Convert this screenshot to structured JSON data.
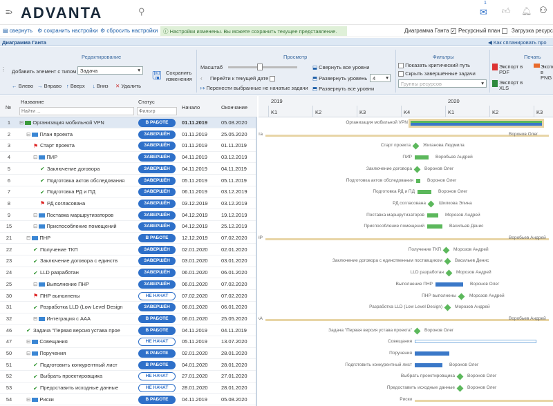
{
  "app": {
    "logo": "ADVANTA",
    "notif_count": "1"
  },
  "toolbar": {
    "collapse": "свернуть",
    "save_settings": "сохранить настройки",
    "reset_settings": "сбросить настройки",
    "notice": "Настройки изменены. Вы можете сохранить текущее представление.",
    "gantt_chk": "Диаграмма Ганта",
    "resource_chk": "Ресурсный план",
    "load_chk": "Загрузка ресурсов"
  },
  "panel": {
    "title": "Диаграмма Ганта",
    "link": "Как спланировать про"
  },
  "ribbon": {
    "edit_title": "Редактирование",
    "add_by_type": "Добавить элемент с типом",
    "type_value": "Задача",
    "save_changes": "Сохранить изменения",
    "left": "Влево",
    "right": "Вправо",
    "up": "Вверх",
    "down": "Вниз",
    "delete": "Удалить",
    "view_title": "Просмотр",
    "scale": "Масштаб",
    "goto_today": "Перейти к текущей дате",
    "move_selected": "Перенести выбранные не начатые задачи",
    "collapse_all": "Свернуть все уровни",
    "expand_level": "Развернуть уровень",
    "level_value": "4",
    "expand_all": "Развернуть все уровни",
    "filters_title": "Фильтры",
    "show_critical": "Показать критический путь",
    "hide_done": "Скрыть завершённые задачи",
    "resource_groups": "Группы ресурсов",
    "print_title": "Печать",
    "export_pdf": "Экспорт в PDF",
    "export_xls": "Экспорт в XLS",
    "export_png": "Экспорт в PNG"
  },
  "grid": {
    "col_num": "№",
    "col_name": "Название",
    "col_status": "Статус",
    "col_start": "Начало",
    "col_end": "Окончание",
    "filter_placeholder": "Найти ...",
    "filter_status_placeholder": "Фильтр"
  },
  "rows": [
    {
      "num": "1",
      "name": "Организация мобильной VPN",
      "status": "В РАБОТЕ",
      "start": "01.11.2019",
      "end": "05.08.2020"
    },
    {
      "num": "2",
      "name": "План проекта",
      "status": "ЗАВЕРШЁН",
      "start": "01.11.2019",
      "end": "25.05.2020"
    },
    {
      "num": "3",
      "name": "Старт проекта",
      "status": "ЗАВЕРШЁН",
      "start": "01.11.2019",
      "end": "01.11.2019"
    },
    {
      "num": "4",
      "name": "ПИР",
      "status": "ЗАВЕРШЁН",
      "start": "04.11.2019",
      "end": "03.12.2019"
    },
    {
      "num": "5",
      "name": "Заключение договора",
      "status": "ЗАВЕРШЁН",
      "start": "04.11.2019",
      "end": "04.11.2019"
    },
    {
      "num": "6",
      "name": "Подготовка актов обследования",
      "status": "ЗАВЕРШЁН",
      "start": "05.11.2019",
      "end": "05.11.2019"
    },
    {
      "num": "7",
      "name": "Подготовка РД и ПД",
      "status": "ЗАВЕРШЁН",
      "start": "06.11.2019",
      "end": "03.12.2019"
    },
    {
      "num": "8",
      "name": "РД согласована",
      "status": "ЗАВЕРШЁН",
      "start": "03.12.2019",
      "end": "03.12.2019"
    },
    {
      "num": "9",
      "name": "Поставка маршрутизаторов",
      "status": "ЗАВЕРШЁН",
      "start": "04.12.2019",
      "end": "19.12.2019"
    },
    {
      "num": "15",
      "name": "Приспособление помещений",
      "status": "ЗАВЕРШЁН",
      "start": "04.12.2019",
      "end": "25.12.2019"
    },
    {
      "num": "21",
      "name": "ПНР",
      "status": "В РАБОТЕ",
      "start": "12.12.2019",
      "end": "07.02.2020"
    },
    {
      "num": "22",
      "name": "Получение ТКП",
      "status": "ЗАВЕРШЁН",
      "start": "02.01.2020",
      "end": "02.01.2020"
    },
    {
      "num": "23",
      "name": "Заключение договора с единств",
      "status": "ЗАВЕРШЁН",
      "start": "03.01.2020",
      "end": "03.01.2020"
    },
    {
      "num": "24",
      "name": "LLD разработан",
      "status": "ЗАВЕРШЁН",
      "start": "06.01.2020",
      "end": "06.01.2020"
    },
    {
      "num": "25",
      "name": "Выполнение ПНР",
      "status": "ЗАВЕРШЁН",
      "start": "06.01.2020",
      "end": "07.02.2020"
    },
    {
      "num": "30",
      "name": "ПНР выполнены",
      "status": "НЕ НАЧАТ",
      "start": "07.02.2020",
      "end": "07.02.2020"
    },
    {
      "num": "31",
      "name": "Разработка LLD (Low Level Design",
      "status": "ЗАВЕРШЁН",
      "start": "06.01.2020",
      "end": "06.01.2020"
    },
    {
      "num": "32",
      "name": "Интеграция с ААА",
      "status": "В РАБОТЕ",
      "start": "06.01.2020",
      "end": "25.05.2020"
    },
    {
      "num": "46",
      "name": "Задача \"Первая версия устава прое",
      "status": "В РАБОТЕ",
      "start": "04.11.2019",
      "end": "04.11.2019"
    },
    {
      "num": "47",
      "name": "Совещания",
      "status": "НЕ НАЧАТ",
      "start": "05.11.2019",
      "end": "13.07.2020"
    },
    {
      "num": "50",
      "name": "Поручения",
      "status": "В РАБОТЕ",
      "start": "02.01.2020",
      "end": "28.01.2020"
    },
    {
      "num": "51",
      "name": "Подготовить конкурентный лист",
      "status": "В РАБОТЕ",
      "start": "04.01.2020",
      "end": "28.01.2020"
    },
    {
      "num": "52",
      "name": "Выбрать проектировщика",
      "status": "НЕ НАЧАТ",
      "start": "27.01.2020",
      "end": "27.01.2020"
    },
    {
      "num": "53",
      "name": "Предоставить исходные данные",
      "status": "НЕ НАЧАТ",
      "start": "28.01.2020",
      "end": "28.01.2020"
    },
    {
      "num": "54",
      "name": "Риски",
      "status": "В РАБОТЕ",
      "start": "04.11.2019",
      "end": "05.08.2020"
    }
  ],
  "gantt": {
    "years": [
      "2019",
      "2020"
    ],
    "quarters": [
      "K1",
      "K2",
      "K3",
      "K4",
      "K1",
      "K2",
      "K3"
    ],
    "labels": [
      {
        "left": "Организация мобильной VPN",
        "right": ""
      },
      {
        "left": "План проекта",
        "right": "Воронов Олег"
      },
      {
        "left": "Старт проекта",
        "right": "Жиганова Людмила"
      },
      {
        "left": "ПИР",
        "right": "Воробьев Андрей"
      },
      {
        "left": "Заключение договора",
        "right": "Воронов Олег"
      },
      {
        "left": "Подготовка актов обследования",
        "right": "Воронов Олег"
      },
      {
        "left": "Подготовка РД и ПД",
        "right": "Воронов Олег"
      },
      {
        "left": "РД согласована",
        "right": "Шилкова Элина"
      },
      {
        "left": "Поставка маршрутизаторов",
        "right": "Морозов Андрей"
      },
      {
        "left": "Приспособление помещений",
        "right": "Васильев Денис"
      },
      {
        "left": "ПНР",
        "right": "Воробьев Андрей"
      },
      {
        "left": "Получение ТКП",
        "right": "Морозов Андрей"
      },
      {
        "left": "Заключение договора с единственным поставщиком",
        "right": "Васильев Денис"
      },
      {
        "left": "LLD разработан",
        "right": "Морозов Андрей"
      },
      {
        "left": "Выполнение ПНР",
        "right": "Воронов Олег"
      },
      {
        "left": "ПНР выполнены",
        "right": "Морозов Андрей"
      },
      {
        "left": "Разработка LLD (Low Level Design)",
        "right": "Морозов Андрей"
      },
      {
        "left": "Интеграция с ААА",
        "right": "Воробьев Андрей"
      },
      {
        "left": "Задача \"Первая версия устава проекта\"",
        "right": "Воронов Олег"
      },
      {
        "left": "Совещания",
        "right": ""
      },
      {
        "left": "Поручения",
        "right": ""
      },
      {
        "left": "Подготовить конкурентный лист",
        "right": "Воронов Олег"
      },
      {
        "left": "Выбрать проектировщика",
        "right": "Воронов Олег"
      },
      {
        "left": "Предоставить исходные данные",
        "right": "Воронов Олег"
      },
      {
        "left": "Риски",
        "right": ""
      }
    ]
  },
  "colors": {
    "accent": "#2e70c9",
    "green": "#5cb85c",
    "summary": "#e8d5a6",
    "bar_blue": "#3a78c8"
  }
}
